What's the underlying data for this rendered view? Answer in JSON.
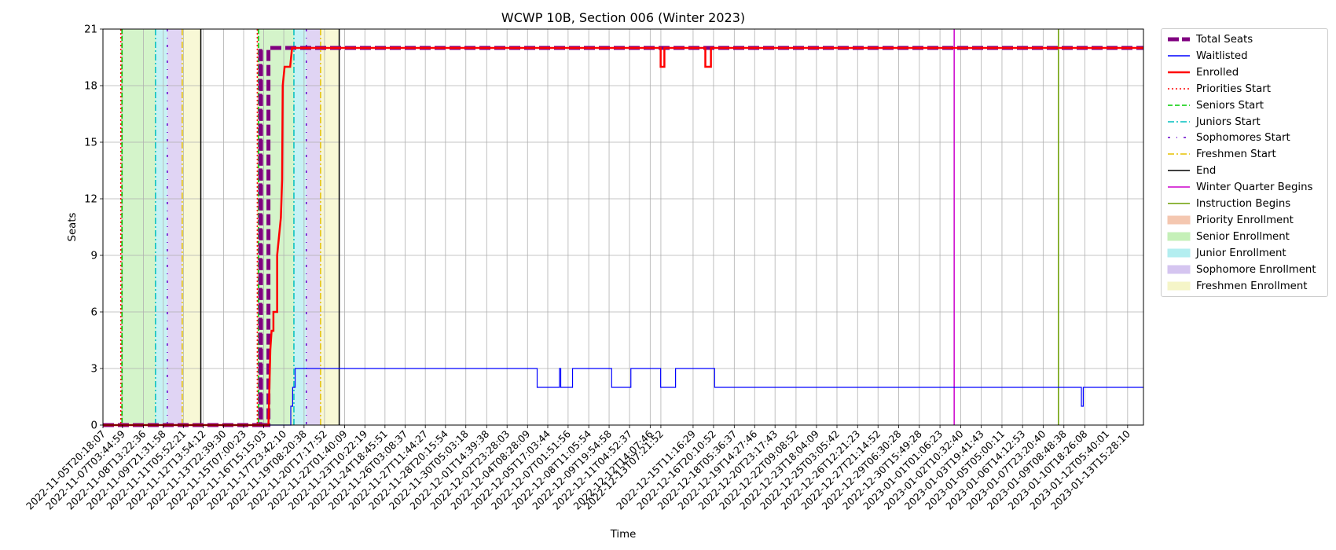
{
  "chart_data": {
    "type": "line",
    "title": "WCWP 10B, Section 006 (Winter 2023)",
    "xlabel": "Time",
    "ylabel": "Seats",
    "ylim": [
      0,
      21
    ],
    "xlim": [
      "2022-11-05T20:18:07",
      "2023-01-14T17:00:00"
    ],
    "y_ticks": [
      0,
      3,
      6,
      9,
      12,
      15,
      18,
      21
    ],
    "x_tick_labels": [
      "2022-11-05T20:18:07",
      "2022-11-07T03:44:59",
      "2022-11-08T13:22:36",
      "2022-11-09T21:31:58",
      "2022-11-11T05:52:21",
      "2022-11-12T13:54:12",
      "2022-11-13T22:39:30",
      "2022-11-15T07:00:23",
      "2022-11-16T15:15:03",
      "2022-11-17T23:42:10",
      "2022-11-19T08:20:38",
      "2022-11-20T17:17:52",
      "2022-11-22T01:40:09",
      "2022-11-23T10:22:19",
      "2022-11-24T18:45:51",
      "2022-11-26T03:08:37",
      "2022-11-27T11:44:27",
      "2022-11-28T20:15:54",
      "2022-11-30T05:03:18",
      "2022-12-01T14:39:38",
      "2022-12-02T23:28:03",
      "2022-12-04T08:28:09",
      "2022-12-05T17:03:44",
      "2022-12-07T01:51:56",
      "2022-12-08T11:05:54",
      "2022-12-09T19:54:58",
      "2022-12-11T04:52:37",
      "2022-12-12T14:07:46",
      "2022-12-13T07:21:52",
      "2022-12-15T11:16:29",
      "2022-12-16T20:10:52",
      "2022-12-18T05:36:37",
      "2022-12-19T14:27:46",
      "2022-12-20T23:17:43",
      "2022-12-22T09:08:52",
      "2022-12-23T18:04:09",
      "2022-12-25T03:05:42",
      "2022-12-26T12:21:23",
      "2022-12-27T21:14:52",
      "2022-12-29T06:30:28",
      "2022-12-30T15:49:28",
      "2023-01-01T01:06:23",
      "2023-01-02T10:32:40",
      "2023-01-03T19:41:43",
      "2023-01-05T05:00:11",
      "2023-01-06T14:12:53",
      "2023-01-07T23:20:40",
      "2023-01-09T08:48:38",
      "2023-01-10T18:26:08",
      "2023-01-12T05:40:01",
      "2023-01-13T15:28:10"
    ],
    "grid": true,
    "legend_placement": "outside-right",
    "series": [
      {
        "name": "Total Seats",
        "color": "#800080",
        "style": "dashed-thick",
        "points": [
          [
            "2022-11-05T20:18:07",
            0
          ],
          [
            "2022-11-16T10:00:00",
            0
          ],
          [
            "2022-11-16T10:00:00",
            20
          ],
          [
            "2022-11-16T11:00:00",
            20
          ],
          [
            "2022-11-16T11:00:00",
            0
          ],
          [
            "2022-11-16T23:00:00",
            0
          ],
          [
            "2022-11-16T23:00:00",
            20
          ],
          [
            "2023-01-14T17:00:00",
            20
          ]
        ]
      },
      {
        "name": "Waitlisted",
        "color": "#0000ff",
        "style": "solid-thin",
        "points": [
          [
            "2022-11-05T20:18:07",
            0
          ],
          [
            "2022-11-18T11:00:00",
            0
          ],
          [
            "2022-11-18T11:00:00",
            1
          ],
          [
            "2022-11-18T14:00:00",
            1
          ],
          [
            "2022-11-18T14:00:00",
            2
          ],
          [
            "2022-11-18T18:00:00",
            2
          ],
          [
            "2022-11-18T18:00:00",
            3
          ],
          [
            "2022-12-05T00:00:00",
            3
          ],
          [
            "2022-12-05T00:00:00",
            2
          ],
          [
            "2022-12-06T12:00:00",
            2
          ],
          [
            "2022-12-06T12:00:00",
            3
          ],
          [
            "2022-12-06T14:00:00",
            3
          ],
          [
            "2022-12-06T14:00:00",
            2
          ],
          [
            "2022-12-07T09:00:00",
            2
          ],
          [
            "2022-12-07T09:00:00",
            3
          ],
          [
            "2022-12-10T00:00:00",
            3
          ],
          [
            "2022-12-10T00:00:00",
            2
          ],
          [
            "2022-12-11T07:00:00",
            2
          ],
          [
            "2022-12-11T07:00:00",
            3
          ],
          [
            "2022-12-13T07:00:00",
            3
          ],
          [
            "2022-12-13T07:00:00",
            2
          ],
          [
            "2022-12-14T07:00:00",
            2
          ],
          [
            "2022-12-14T07:00:00",
            3
          ],
          [
            "2022-12-16T22:00:00",
            3
          ],
          [
            "2022-12-16T22:00:00",
            2
          ],
          [
            "2023-01-10T13:00:00",
            2
          ],
          [
            "2023-01-10T13:00:00",
            1
          ],
          [
            "2023-01-10T16:00:00",
            1
          ],
          [
            "2023-01-10T16:00:00",
            2
          ],
          [
            "2023-01-14T17:00:00",
            2
          ]
        ]
      },
      {
        "name": "Enrolled",
        "color": "#ff0000",
        "style": "solid-thick",
        "points": [
          [
            "2022-11-05T20:18:07",
            0
          ],
          [
            "2022-11-16T23:00:00",
            0
          ],
          [
            "2022-11-17T02:00:00",
            4
          ],
          [
            "2022-11-17T04:00:00",
            5
          ],
          [
            "2022-11-17T07:00:00",
            5
          ],
          [
            "2022-11-17T07:00:00",
            6
          ],
          [
            "2022-11-17T13:00:00",
            6
          ],
          [
            "2022-11-17T13:00:00",
            9
          ],
          [
            "2022-11-17T16:00:00",
            10
          ],
          [
            "2022-11-17T19:00:00",
            11
          ],
          [
            "2022-11-17T21:00:00",
            13
          ],
          [
            "2022-11-17T22:00:00",
            18
          ],
          [
            "2022-11-18T01:00:00",
            19
          ],
          [
            "2022-11-18T10:00:00",
            19
          ],
          [
            "2022-11-18T13:00:00",
            20
          ],
          [
            "2022-12-13T07:00:00",
            20
          ],
          [
            "2022-12-13T07:00:00",
            19
          ],
          [
            "2022-12-13T13:00:00",
            19
          ],
          [
            "2022-12-13T13:00:00",
            20
          ],
          [
            "2022-12-16T07:00:00",
            20
          ],
          [
            "2022-12-16T07:00:00",
            19
          ],
          [
            "2022-12-16T16:00:00",
            19
          ],
          [
            "2022-12-16T16:00:00",
            20
          ],
          [
            "2023-01-14T17:00:00",
            20
          ]
        ]
      }
    ],
    "vertical_lines": [
      {
        "name": "Priorities Start",
        "color": "#ff0000",
        "style": "dotted",
        "x": [
          "2022-11-07T01:00:00",
          "2022-11-16T05:00:00"
        ]
      },
      {
        "name": "Seniors Start",
        "color": "#00cc00",
        "style": "dashed",
        "x": [
          "2022-11-07T03:00:00",
          "2022-11-16T07:00:00"
        ]
      },
      {
        "name": "Juniors Start",
        "color": "#00bfbf",
        "style": "dash-dot",
        "x": [
          "2022-11-09T09:00:00",
          "2022-11-18T16:00:00"
        ]
      },
      {
        "name": "Sophomores Start",
        "color": "#6600cc",
        "style": "dash-dot-sparse",
        "x": [
          "2022-11-10T04:00:00",
          "2022-11-19T12:00:00"
        ]
      },
      {
        "name": "Freshmen Start",
        "color": "#e6c200",
        "style": "dash-dot",
        "x": [
          "2022-11-11T04:00:00",
          "2022-11-20T11:00:00"
        ]
      },
      {
        "name": "End",
        "color": "#000000",
        "style": "solid",
        "x": [
          "2022-11-12T10:00:00",
          "2022-11-21T17:00:00"
        ]
      },
      {
        "name": "Winter Quarter Begins",
        "color": "#cc00cc",
        "style": "solid",
        "x": [
          "2023-01-02T00:00:00"
        ]
      },
      {
        "name": "Instruction Begins",
        "color": "#6b9e00",
        "style": "solid",
        "x": [
          "2023-01-09T00:00:00"
        ]
      }
    ],
    "shaded_periods": [
      {
        "name": "Priority Enrollment",
        "color": "#f4c7b0",
        "ranges": [
          [
            "2022-11-07T01:00:00",
            "2022-11-07T03:00:00"
          ],
          [
            "2022-11-16T05:00:00",
            "2022-11-16T07:00:00"
          ]
        ]
      },
      {
        "name": "Senior Enrollment",
        "color": "#c5f0b8",
        "ranges": [
          [
            "2022-11-07T03:00:00",
            "2022-11-09T09:00:00"
          ],
          [
            "2022-11-16T07:00:00",
            "2022-11-18T16:00:00"
          ]
        ]
      },
      {
        "name": "Junior Enrollment",
        "color": "#b3eef0",
        "ranges": [
          [
            "2022-11-09T09:00:00",
            "2022-11-10T04:00:00"
          ],
          [
            "2022-11-18T16:00:00",
            "2022-11-19T12:00:00"
          ]
        ]
      },
      {
        "name": "Sophomore Enrollment",
        "color": "#d5c5f0",
        "ranges": [
          [
            "2022-11-10T04:00:00",
            "2022-11-11T04:00:00"
          ],
          [
            "2022-11-19T12:00:00",
            "2022-11-20T11:00:00"
          ]
        ]
      },
      {
        "name": "Freshmen Enrollment",
        "color": "#f5f5c8",
        "ranges": [
          [
            "2022-11-11T04:00:00",
            "2022-11-12T10:00:00"
          ],
          [
            "2022-11-20T11:00:00",
            "2022-11-21T17:00:00"
          ]
        ]
      }
    ]
  },
  "legend": [
    {
      "label": "Total Seats",
      "color": "#800080",
      "kind": "line-thick-dashed"
    },
    {
      "label": "Waitlisted",
      "color": "#0000ff",
      "kind": "line"
    },
    {
      "label": "Enrolled",
      "color": "#ff0000",
      "kind": "line-thick"
    },
    {
      "label": "Priorities Start",
      "color": "#ff0000",
      "kind": "dotted"
    },
    {
      "label": "Seniors Start",
      "color": "#00cc00",
      "kind": "dashed"
    },
    {
      "label": "Juniors Start",
      "color": "#00bfbf",
      "kind": "dashdot"
    },
    {
      "label": "Sophomores Start",
      "color": "#6600cc",
      "kind": "dashdot-sparse"
    },
    {
      "label": "Freshmen Start",
      "color": "#e6c200",
      "kind": "dashdot"
    },
    {
      "label": "End",
      "color": "#000000",
      "kind": "line"
    },
    {
      "label": "Winter Quarter Begins",
      "color": "#cc00cc",
      "kind": "line"
    },
    {
      "label": "Instruction Begins",
      "color": "#6b9e00",
      "kind": "line"
    },
    {
      "label": "Priority Enrollment",
      "color": "#f4c7b0",
      "kind": "patch"
    },
    {
      "label": "Senior Enrollment",
      "color": "#c5f0b8",
      "kind": "patch"
    },
    {
      "label": "Junior Enrollment",
      "color": "#b3eef0",
      "kind": "patch"
    },
    {
      "label": "Sophomore Enrollment",
      "color": "#d5c5f0",
      "kind": "patch"
    },
    {
      "label": "Freshmen Enrollment",
      "color": "#f5f5c8",
      "kind": "patch"
    }
  ]
}
